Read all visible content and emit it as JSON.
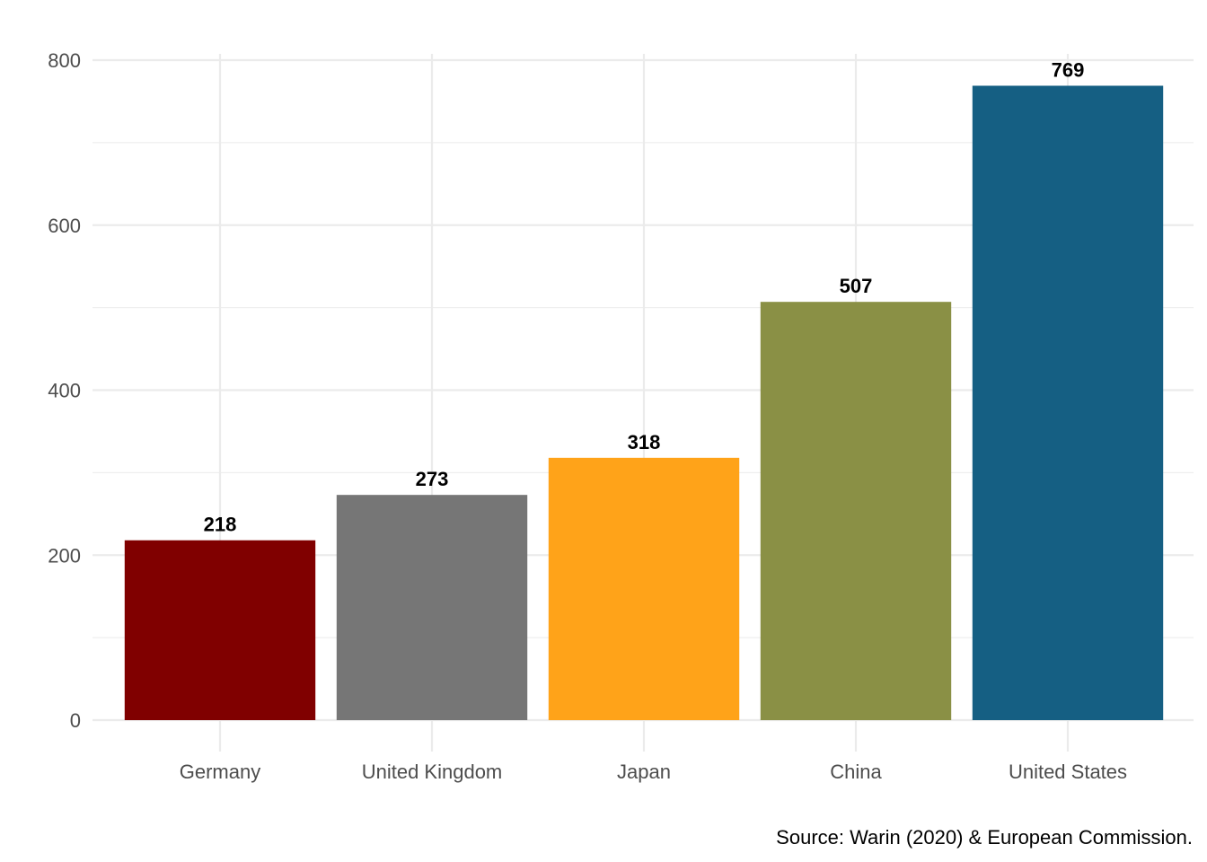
{
  "chart_data": {
    "type": "bar",
    "title": "",
    "xlabel": "",
    "ylabel": "",
    "categories": [
      "Germany",
      "United Kingdom",
      "Japan",
      "China",
      "United States"
    ],
    "values": [
      218,
      273,
      318,
      507,
      769
    ],
    "data_labels": [
      "218",
      "273",
      "318",
      "507",
      "769"
    ],
    "colors": [
      "#800000",
      "#767676",
      "#FFA319",
      "#8A9045",
      "#155F83"
    ],
    "ylim": [
      0,
      800
    ],
    "yticks": [
      0,
      200,
      400,
      600,
      800
    ],
    "ytick_labels": [
      "0",
      "200",
      "400",
      "600",
      "800"
    ],
    "grid": true,
    "legend": "none",
    "caption": "Source: Warin (2020) & European Commission."
  }
}
